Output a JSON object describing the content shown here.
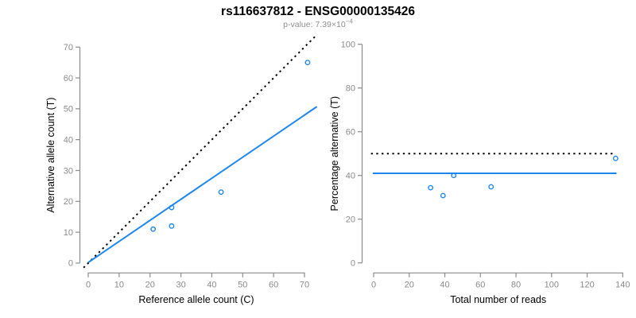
{
  "header": {
    "title": "rs116637812 - ENSG00000135426",
    "subtitle_main": "p-value: 7.39×10",
    "subtitle_exponent": "−4"
  },
  "colors": {
    "point_blue": "#1C86EE",
    "fit_line_blue": "#1C86EE",
    "expected_line_black": "#000000",
    "axis_gray": "#8C8C8C",
    "tick_label_gray": "#8A8A8A",
    "subtitle_gray": "#8F8F8F",
    "title_black": "#000000",
    "axis_title_black": "#000000"
  },
  "chart_data": [
    {
      "type": "scatter",
      "name": "allele-counts-scatter",
      "xlabel": "Reference allele count (C)",
      "ylabel": "Alternative allele count (T)",
      "xlim": [
        0,
        70
      ],
      "ylim": [
        0,
        70
      ],
      "xticks": [
        0,
        10,
        20,
        30,
        40,
        50,
        60,
        70
      ],
      "yticks": [
        0,
        10,
        20,
        30,
        40,
        50,
        60,
        70
      ],
      "grid": false,
      "points": [
        [
          21,
          11
        ],
        [
          27,
          12
        ],
        [
          27,
          18
        ],
        [
          43,
          23
        ],
        [
          71,
          65
        ]
      ],
      "lines": [
        {
          "name": "expected-50-50-line",
          "style": "dotted",
          "color": "#000000",
          "from": [
            -1.5,
            -1.5
          ],
          "to": [
            73.5,
            73.5
          ]
        },
        {
          "name": "fitted-ratio-line",
          "style": "solid",
          "color": "#1C86EE",
          "from": [
            0,
            0.2
          ],
          "to": [
            74,
            50.7
          ]
        }
      ]
    },
    {
      "type": "scatter",
      "name": "percentage-vs-reads-scatter",
      "xlabel": "Total number of reads",
      "ylabel": "Percentage alternative (T)",
      "xlim": [
        0,
        140
      ],
      "ylim": [
        0,
        100
      ],
      "xticks": [
        0,
        20,
        40,
        60,
        80,
        100,
        120,
        140
      ],
      "yticks": [
        0,
        20,
        40,
        60,
        80,
        100
      ],
      "grid": false,
      "points": [
        [
          32,
          34.4
        ],
        [
          39,
          30.8
        ],
        [
          45,
          40
        ],
        [
          66,
          34.8
        ],
        [
          136,
          47.8
        ]
      ],
      "lines": [
        {
          "name": "expected-50-percent-line",
          "style": "dotted",
          "color": "#000000",
          "y": 50,
          "x_from": -1.5,
          "x_to": 134.5
        },
        {
          "name": "observed-mean-percent-line",
          "style": "solid",
          "color": "#1C86EE",
          "y": 41,
          "x_from": -0.5,
          "x_to": 136.5
        }
      ]
    }
  ]
}
